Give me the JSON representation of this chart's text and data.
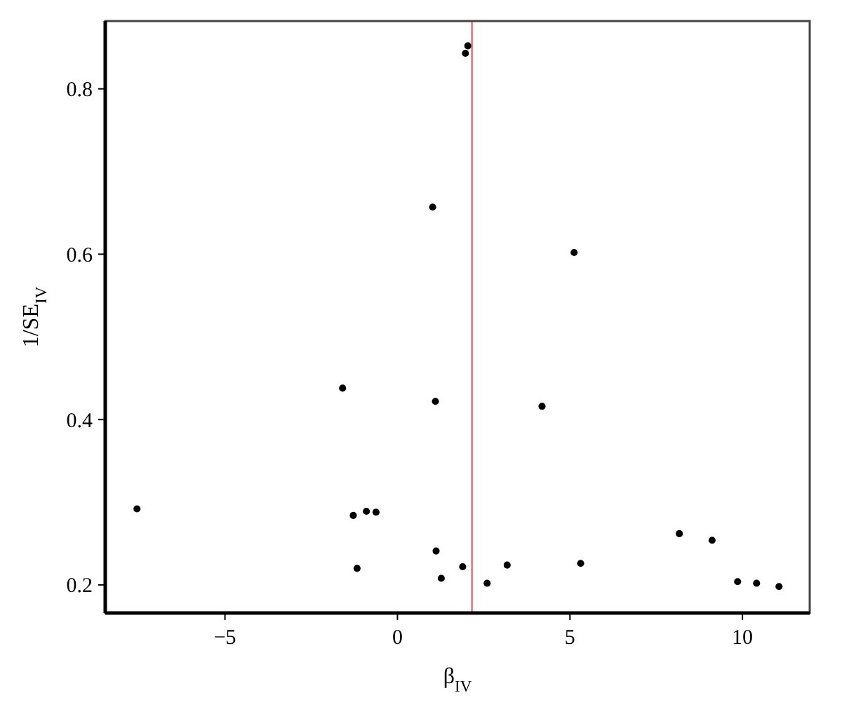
{
  "chart_data": {
    "type": "scatter",
    "xlabel": "β$_{IV}$",
    "ylabel": "1/SE$_{IV}$",
    "x": [
      1.97,
      2.04,
      1.02,
      5.12,
      -1.59,
      1.1,
      -7.55,
      -1.28,
      -0.9,
      -0.62,
      1.12,
      -1.17,
      1.27,
      1.89,
      2.6,
      4.19,
      3.18,
      5.31,
      8.17,
      9.12,
      9.86,
      10.41,
      11.06
    ],
    "values": [
      0.843,
      0.852,
      0.657,
      0.602,
      0.438,
      0.422,
      0.292,
      0.284,
      0.289,
      0.288,
      0.241,
      0.22,
      0.208,
      0.222,
      0.202,
      0.416,
      0.224,
      0.226,
      0.262,
      0.254,
      0.204,
      0.202,
      0.198
    ],
    "color": "#000000",
    "marker": "circle",
    "xlim": [
      -8.47,
      11.95
    ],
    "ylim": [
      0.166,
      0.882
    ],
    "xticks": [
      -5,
      0,
      5,
      10
    ],
    "yticks": [
      {
        "value": 0.2,
        "label": "0.2"
      },
      {
        "value": 0.4,
        "label": "0.4"
      },
      {
        "value": 0.6,
        "label": "0.6"
      },
      {
        "value": 0.8,
        "label": "0.8"
      }
    ],
    "ref_lines": [
      {
        "axis": "x",
        "value": 2.16,
        "color": "#f08080"
      }
    ],
    "grid": false
  }
}
